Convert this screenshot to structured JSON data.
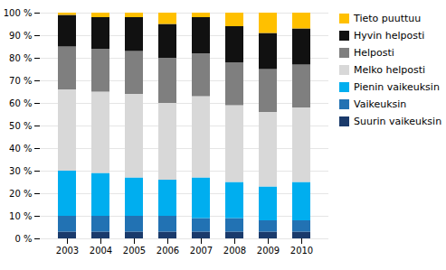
{
  "chart_data": {
    "type": "bar",
    "stacked": true,
    "categories": [
      "2003",
      "2004",
      "2005",
      "2006",
      "2007",
      "2008",
      "2009",
      "2010"
    ],
    "series": [
      {
        "name": "Suurin vaikeuksin",
        "color": "#1a3a6b",
        "values": [
          3,
          3,
          3,
          3,
          3,
          3,
          3,
          3
        ]
      },
      {
        "name": "Vaikeuksin",
        "color": "#2272b3",
        "values": [
          7,
          7,
          7,
          7,
          6,
          6,
          5,
          5
        ]
      },
      {
        "name": "Pienin vaikeuksin",
        "color": "#00aeef",
        "values": [
          20,
          19,
          17,
          16,
          18,
          16,
          15,
          17
        ]
      },
      {
        "name": "Melko helposti",
        "color": "#d8d8d8",
        "values": [
          36,
          36,
          37,
          34,
          36,
          34,
          33,
          33
        ]
      },
      {
        "name": "Helposti",
        "color": "#7f7f7f",
        "values": [
          19,
          19,
          19,
          20,
          19,
          19,
          19,
          19
        ]
      },
      {
        "name": "Hyvin helposti",
        "color": "#111111",
        "values": [
          14,
          14,
          15,
          15,
          16,
          16,
          16,
          16
        ]
      },
      {
        "name": "Tieto puuttuu",
        "color": "#ffc000",
        "values": [
          1,
          2,
          2,
          5,
          2,
          6,
          9,
          7
        ]
      }
    ],
    "ylim": [
      0,
      100
    ],
    "yticks": [
      {
        "value": 0,
        "label": "0 %"
      },
      {
        "value": 10,
        "label": "10 %"
      },
      {
        "value": 20,
        "label": "20 %"
      },
      {
        "value": 30,
        "label": "30 %"
      },
      {
        "value": 40,
        "label": "40 %"
      },
      {
        "value": 50,
        "label": "50 %"
      },
      {
        "value": 60,
        "label": "60 %"
      },
      {
        "value": 70,
        "label": "70 %"
      },
      {
        "value": 80,
        "label": "80 %"
      },
      {
        "value": 90,
        "label": "90 %"
      },
      {
        "value": 100,
        "label": "100 %"
      }
    ],
    "grid": true,
    "legend": "right"
  }
}
